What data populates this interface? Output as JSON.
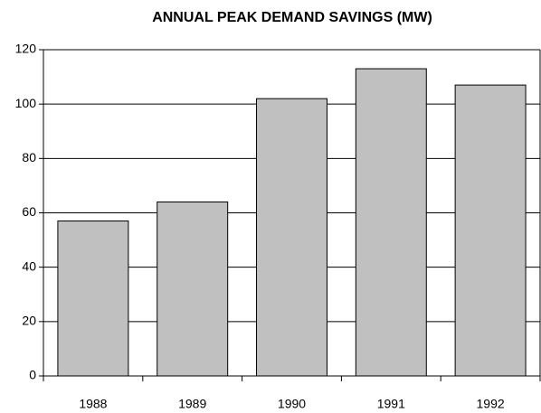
{
  "chart_data": {
    "type": "bar",
    "title": "ANNUAL PEAK DEMAND SAVINGS (MW)",
    "categories": [
      "1988",
      "1989",
      "1990",
      "1991",
      "1992"
    ],
    "values": [
      57,
      64,
      102,
      113,
      107
    ],
    "color": "#c0c0c0",
    "ylim": [
      0,
      120
    ],
    "yticks": [
      0,
      20,
      40,
      60,
      80,
      100,
      120
    ],
    "grid": true
  }
}
